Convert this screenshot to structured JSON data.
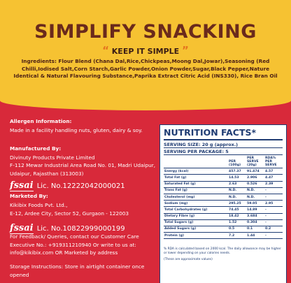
{
  "header": {
    "title": "SIMPLIFY SNACKING",
    "open_quote": "“",
    "tagline": "KEEP IT SIMPLE",
    "close_quote": "”",
    "ingredients": "Ingredients: Flour Blend (Chana Dal,Rice,Chickpeas,Moong Dal,Jowar),Seasoning (Red Chilli,Iodised Salt,Corn Starch,Garlic Powder,Onion Powder,Sugar,Black Pepper,Nature Identical & Natural Flavouring Substance,Paprika Extract Citric Acid (INS330), Rice Bran Oil"
  },
  "info": {
    "allergen_title": "Allergen Information:",
    "allergen_text": "Made in a facility handling nuts, gluten, dairy & soy.",
    "manufacturer_title": "Manufactured By:",
    "manufacturer_name": "Divinuty Products Private Limited",
    "manufacturer_address": "F-112 Mewar Industrial Area Road No. 01, Madri Udaipur, Udaipur, Rajasthan (313003)",
    "fssai_logo_1": "fssai",
    "license_1": "Lic. No.12222042000021",
    "marketer_title": "Marketed By:",
    "marketer_name": "Kikibix Foods Pvt. Ltd.,",
    "marketer_address": "E-12, Ardee City, Sector 52, Gurgaon - 122003",
    "fssai_logo_2": "fssai",
    "license_2": "Lic. No.10822999000199",
    "feedback": "For Feedback/ Queries, contact our Customer Care Executive No.: +919311210940 Or write to us at: info@kikibix.com OR Marketed by address",
    "storage": "Storage Instructions: Store in airtight container once opened"
  },
  "nutrition": {
    "title": "NUTRITION FACTS*",
    "serving_size": "SERVING SIZE: 20 g (approx.)",
    "servings": "SERVING PER PACKAGE: 5",
    "columns": [
      "PER (100g)",
      "PER SERVE (20g)",
      "RDA% PER SERVE"
    ],
    "rows": [
      [
        "Energy (kcal)",
        "457.37",
        "91.474",
        "4.57"
      ],
      [
        "Total Fat (g)",
        "14.53",
        "2.906",
        "4.47"
      ],
      [
        "Saturated Fat (g)",
        "2.63",
        "0.526",
        "2.39"
      ],
      [
        "Trans Fat (g)",
        "N.D.",
        "N.D.",
        "-"
      ],
      [
        "Cholesterol (mg)",
        "N.D.",
        "N.D.",
        "-"
      ],
      [
        "Sodium (mg)",
        "295.25",
        "59.05",
        "2.95"
      ],
      [
        "Total Carbohydrates (g)",
        "74.45",
        "14.89",
        "-"
      ],
      [
        "Dietary Fibre (g)",
        "18.42",
        "3.684",
        "-"
      ],
      [
        "Total Sugars (g)",
        "1.52",
        "0.304",
        "-"
      ],
      [
        "Added Sugars (g)",
        "0.5",
        "0.1",
        "0.2"
      ],
      [
        "Protein (g)",
        "7.2",
        "1.44",
        "-"
      ]
    ],
    "footnote": "% RDA is calculated based on 2000 kcal. The daily allowance may be higher or lower depending on your calories needs.",
    "approx_note": "(These are approximate values)"
  }
}
